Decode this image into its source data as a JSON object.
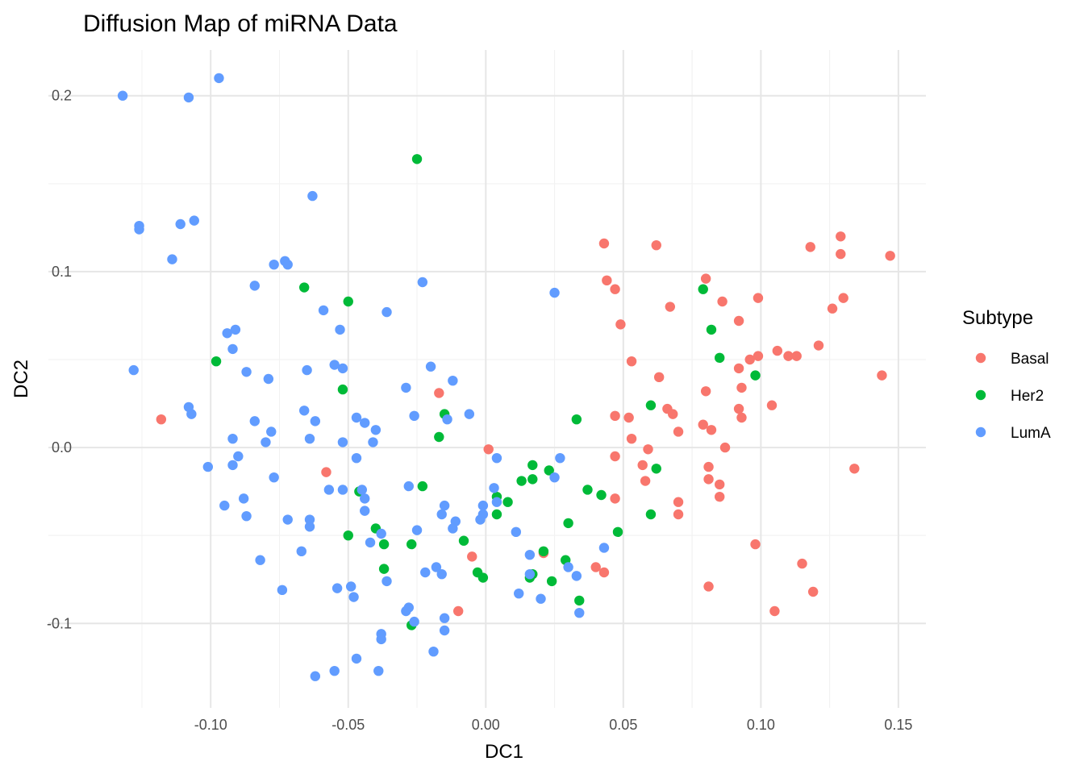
{
  "chart_data": {
    "type": "scatter",
    "title": "Diffusion Map of miRNA Data",
    "xlabel": "DC1",
    "ylabel": "DC2",
    "xlim": [
      -0.159,
      0.16
    ],
    "ylim": [
      -0.148,
      0.226
    ],
    "x_ticks": [
      -0.1,
      -0.05,
      0.0,
      0.05,
      0.1,
      0.15
    ],
    "x_tick_labels": [
      "-0.10",
      "-0.05",
      "0.00",
      "0.05",
      "0.10",
      "0.15"
    ],
    "y_ticks": [
      -0.1,
      0.0,
      0.1,
      0.2
    ],
    "y_tick_labels": [
      "-0.1",
      "0.0",
      "0.1",
      "0.2"
    ],
    "grid": true,
    "legend": {
      "title": "Subtype",
      "placement": "right"
    },
    "series": [
      {
        "name": "Basal",
        "color": "#F8766D",
        "points": [
          [
            -0.118,
            0.016
          ],
          [
            0.043,
            0.116
          ],
          [
            0.062,
            0.115
          ],
          [
            0.118,
            0.114
          ],
          [
            0.129,
            0.12
          ],
          [
            0.129,
            0.11
          ],
          [
            0.147,
            0.109
          ],
          [
            0.044,
            0.095
          ],
          [
            0.047,
            0.09
          ],
          [
            0.08,
            0.096
          ],
          [
            0.067,
            0.08
          ],
          [
            0.086,
            0.083
          ],
          [
            0.099,
            0.085
          ],
          [
            0.13,
            0.085
          ],
          [
            0.126,
            0.079
          ],
          [
            0.049,
            0.07
          ],
          [
            0.092,
            0.072
          ],
          [
            0.121,
            0.058
          ],
          [
            0.106,
            0.055
          ],
          [
            0.11,
            0.052
          ],
          [
            0.113,
            0.052
          ],
          [
            0.096,
            0.05
          ],
          [
            0.099,
            0.052
          ],
          [
            0.053,
            0.049
          ],
          [
            0.063,
            0.04
          ],
          [
            0.092,
            0.045
          ],
          [
            0.144,
            0.041
          ],
          [
            0.093,
            0.034
          ],
          [
            0.08,
            0.032
          ],
          [
            -0.017,
            0.031
          ],
          [
            0.104,
            0.024
          ],
          [
            0.066,
            0.022
          ],
          [
            0.068,
            0.019
          ],
          [
            0.092,
            0.022
          ],
          [
            0.093,
            0.017
          ],
          [
            0.047,
            0.018
          ],
          [
            0.052,
            0.017
          ],
          [
            0.079,
            0.013
          ],
          [
            0.07,
            0.009
          ],
          [
            0.082,
            0.01
          ],
          [
            0.053,
            0.005
          ],
          [
            0.001,
            -0.001
          ],
          [
            0.059,
            -0.001
          ],
          [
            0.087,
            0.0
          ],
          [
            0.047,
            -0.005
          ],
          [
            0.057,
            -0.01
          ],
          [
            0.081,
            -0.011
          ],
          [
            0.134,
            -0.012
          ],
          [
            -0.058,
            -0.014
          ],
          [
            0.058,
            -0.019
          ],
          [
            0.081,
            -0.018
          ],
          [
            0.085,
            -0.021
          ],
          [
            0.085,
            -0.028
          ],
          [
            0.047,
            -0.029
          ],
          [
            0.07,
            -0.031
          ],
          [
            0.07,
            -0.038
          ],
          [
            0.021,
            -0.06
          ],
          [
            -0.005,
            -0.062
          ],
          [
            0.098,
            -0.055
          ],
          [
            0.115,
            -0.066
          ],
          [
            0.04,
            -0.068
          ],
          [
            0.043,
            -0.071
          ],
          [
            0.081,
            -0.079
          ],
          [
            0.119,
            -0.082
          ],
          [
            -0.01,
            -0.093
          ],
          [
            0.105,
            -0.093
          ]
        ]
      },
      {
        "name": "Her2",
        "color": "#00BA38",
        "points": [
          [
            -0.025,
            0.164
          ],
          [
            -0.066,
            0.091
          ],
          [
            -0.05,
            0.083
          ],
          [
            0.079,
            0.09
          ],
          [
            0.082,
            0.067
          ],
          [
            -0.098,
            0.049
          ],
          [
            0.085,
            0.051
          ],
          [
            0.098,
            0.041
          ],
          [
            -0.052,
            0.033
          ],
          [
            0.06,
            0.024
          ],
          [
            -0.015,
            0.019
          ],
          [
            0.033,
            0.016
          ],
          [
            -0.017,
            0.006
          ],
          [
            0.017,
            -0.01
          ],
          [
            0.023,
            -0.013
          ],
          [
            0.062,
            -0.012
          ],
          [
            0.017,
            -0.018
          ],
          [
            0.013,
            -0.019
          ],
          [
            -0.046,
            -0.025
          ],
          [
            -0.023,
            -0.022
          ],
          [
            0.037,
            -0.024
          ],
          [
            0.042,
            -0.027
          ],
          [
            0.004,
            -0.028
          ],
          [
            0.008,
            -0.031
          ],
          [
            0.004,
            -0.038
          ],
          [
            0.06,
            -0.038
          ],
          [
            0.03,
            -0.043
          ],
          [
            -0.04,
            -0.046
          ],
          [
            0.048,
            -0.048
          ],
          [
            -0.05,
            -0.05
          ],
          [
            -0.008,
            -0.053
          ],
          [
            -0.037,
            -0.055
          ],
          [
            -0.027,
            -0.055
          ],
          [
            0.021,
            -0.059
          ],
          [
            0.029,
            -0.064
          ],
          [
            -0.037,
            -0.069
          ],
          [
            -0.003,
            -0.071
          ],
          [
            -0.001,
            -0.074
          ],
          [
            0.017,
            -0.072
          ],
          [
            0.016,
            -0.074
          ],
          [
            0.024,
            -0.076
          ],
          [
            0.034,
            -0.087
          ],
          [
            -0.027,
            -0.101
          ]
        ]
      },
      {
        "name": "LumA",
        "color": "#619CFF",
        "points": [
          [
            -0.132,
            0.2
          ],
          [
            -0.097,
            0.21
          ],
          [
            -0.108,
            0.199
          ],
          [
            -0.063,
            0.143
          ],
          [
            -0.126,
            0.126
          ],
          [
            -0.126,
            0.124
          ],
          [
            -0.111,
            0.127
          ],
          [
            -0.106,
            0.129
          ],
          [
            -0.114,
            0.107
          ],
          [
            -0.077,
            0.104
          ],
          [
            -0.073,
            0.106
          ],
          [
            -0.072,
            0.104
          ],
          [
            -0.084,
            0.092
          ],
          [
            -0.023,
            0.094
          ],
          [
            -0.059,
            0.078
          ],
          [
            -0.036,
            0.077
          ],
          [
            0.025,
            0.088
          ],
          [
            -0.094,
            0.065
          ],
          [
            -0.091,
            0.067
          ],
          [
            -0.053,
            0.067
          ],
          [
            -0.092,
            0.056
          ],
          [
            -0.128,
            0.044
          ],
          [
            -0.087,
            0.043
          ],
          [
            -0.079,
            0.039
          ],
          [
            -0.065,
            0.044
          ],
          [
            -0.055,
            0.047
          ],
          [
            -0.052,
            0.045
          ],
          [
            -0.02,
            0.046
          ],
          [
            -0.012,
            0.038
          ],
          [
            -0.029,
            0.034
          ],
          [
            -0.108,
            0.023
          ],
          [
            -0.107,
            0.019
          ],
          [
            -0.066,
            0.021
          ],
          [
            -0.062,
            0.015
          ],
          [
            -0.084,
            0.015
          ],
          [
            -0.047,
            0.017
          ],
          [
            -0.044,
            0.014
          ],
          [
            -0.026,
            0.018
          ],
          [
            -0.014,
            0.016
          ],
          [
            -0.006,
            0.019
          ],
          [
            -0.078,
            0.009
          ],
          [
            -0.04,
            0.01
          ],
          [
            -0.092,
            0.005
          ],
          [
            -0.08,
            0.003
          ],
          [
            -0.064,
            0.005
          ],
          [
            -0.052,
            0.003
          ],
          [
            -0.041,
            0.003
          ],
          [
            -0.101,
            -0.011
          ],
          [
            -0.092,
            -0.01
          ],
          [
            -0.09,
            -0.005
          ],
          [
            -0.047,
            -0.006
          ],
          [
            0.004,
            -0.006
          ],
          [
            0.027,
            -0.006
          ],
          [
            -0.077,
            -0.017
          ],
          [
            -0.057,
            -0.024
          ],
          [
            -0.052,
            -0.024
          ],
          [
            -0.045,
            -0.024
          ],
          [
            -0.028,
            -0.022
          ],
          [
            0.003,
            -0.023
          ],
          [
            0.025,
            -0.017
          ],
          [
            -0.088,
            -0.029
          ],
          [
            -0.095,
            -0.033
          ],
          [
            -0.044,
            -0.029
          ],
          [
            -0.015,
            -0.033
          ],
          [
            -0.001,
            -0.033
          ],
          [
            0.004,
            -0.031
          ],
          [
            -0.087,
            -0.039
          ],
          [
            -0.064,
            -0.041
          ],
          [
            -0.072,
            -0.041
          ],
          [
            -0.064,
            -0.045
          ],
          [
            -0.044,
            -0.036
          ],
          [
            -0.016,
            -0.038
          ],
          [
            -0.011,
            -0.042
          ],
          [
            -0.012,
            -0.046
          ],
          [
            -0.001,
            -0.038
          ],
          [
            -0.002,
            -0.041
          ],
          [
            -0.038,
            -0.049
          ],
          [
            -0.025,
            -0.047
          ],
          [
            0.011,
            -0.048
          ],
          [
            -0.042,
            -0.054
          ],
          [
            -0.067,
            -0.059
          ],
          [
            -0.082,
            -0.064
          ],
          [
            0.043,
            -0.057
          ],
          [
            0.016,
            -0.061
          ],
          [
            -0.018,
            -0.068
          ],
          [
            -0.022,
            -0.071
          ],
          [
            -0.016,
            -0.072
          ],
          [
            0.016,
            -0.072
          ],
          [
            0.03,
            -0.068
          ],
          [
            0.033,
            -0.073
          ],
          [
            -0.036,
            -0.076
          ],
          [
            -0.049,
            -0.079
          ],
          [
            -0.054,
            -0.08
          ],
          [
            -0.074,
            -0.081
          ],
          [
            -0.048,
            -0.085
          ],
          [
            0.012,
            -0.083
          ],
          [
            0.02,
            -0.086
          ],
          [
            -0.029,
            -0.093
          ],
          [
            -0.028,
            -0.091
          ],
          [
            0.034,
            -0.094
          ],
          [
            -0.026,
            -0.099
          ],
          [
            -0.015,
            -0.097
          ],
          [
            -0.015,
            -0.104
          ],
          [
            -0.038,
            -0.106
          ],
          [
            -0.038,
            -0.109
          ],
          [
            -0.019,
            -0.116
          ],
          [
            -0.047,
            -0.12
          ],
          [
            -0.055,
            -0.127
          ],
          [
            -0.039,
            -0.127
          ],
          [
            -0.062,
            -0.13
          ]
        ]
      }
    ]
  }
}
